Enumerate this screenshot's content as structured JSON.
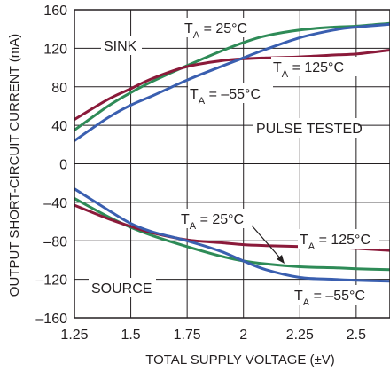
{
  "chart_data": {
    "type": "line",
    "xlabel": "TOTAL SUPPLY VOLTAGE (±V)",
    "ylabel": "OUTPUT SHORT-CIRCUIT CURRENT (mA)",
    "xlim": [
      1.25,
      2.65
    ],
    "ylim": [
      -160,
      160
    ],
    "xticks": [
      "1.25",
      "1.5",
      "1.75",
      "2",
      "2.25",
      "2.5"
    ],
    "yticks": [
      "160",
      "120",
      "80",
      "40",
      "0",
      "–40",
      "–80",
      "–120",
      "–160"
    ],
    "grid": true,
    "colors": {
      "t25": "#2e8b57",
      "t125": "#8b1a3a",
      "tm55": "#3a5fb0",
      "grid": "#231f20",
      "frame": "#231f20"
    },
    "series": [
      {
        "name": "T_A = 25°C",
        "group": "SINK",
        "color_key": "t25",
        "x": [
          1.25,
          1.4,
          1.5,
          1.6,
          1.75,
          1.9,
          2.0,
          2.1,
          2.25,
          2.4,
          2.5,
          2.65
        ],
        "y": [
          35,
          60,
          74,
          86,
          102,
          117,
          126,
          133,
          139,
          142,
          143,
          146
        ]
      },
      {
        "name": "T_A = 125°C",
        "group": "SINK",
        "color_key": "t125",
        "x": [
          1.25,
          1.4,
          1.5,
          1.6,
          1.75,
          1.9,
          2.0,
          2.1,
          2.25,
          2.4,
          2.5,
          2.65
        ],
        "y": [
          46,
          67,
          78,
          89,
          101,
          107,
          109,
          110,
          111,
          113,
          114,
          118
        ]
      },
      {
        "name": "T_A = –55°C",
        "group": "SINK",
        "color_key": "tm55",
        "x": [
          1.25,
          1.4,
          1.5,
          1.6,
          1.75,
          1.9,
          2.0,
          2.1,
          2.25,
          2.4,
          2.5,
          2.65
        ],
        "y": [
          24,
          48,
          61,
          71,
          87,
          101,
          110,
          119,
          131,
          139,
          142,
          145
        ]
      },
      {
        "name": "T_A = 25°C",
        "group": "SOURCE",
        "color_key": "t25",
        "x": [
          1.25,
          1.4,
          1.5,
          1.6,
          1.75,
          1.9,
          2.0,
          2.1,
          2.25,
          2.4,
          2.5,
          2.65
        ],
        "y": [
          -36,
          -55,
          -66,
          -75,
          -86,
          -96,
          -101,
          -104,
          -107,
          -108,
          -109,
          -110
        ]
      },
      {
        "name": "T_A = 125°C",
        "group": "SOURCE",
        "color_key": "t125",
        "x": [
          1.25,
          1.4,
          1.5,
          1.6,
          1.75,
          1.9,
          2.0,
          2.1,
          2.25,
          2.4,
          2.5,
          2.65
        ],
        "y": [
          -43,
          -57,
          -65,
          -72,
          -79,
          -82,
          -84,
          -85,
          -86,
          -87,
          -88,
          -90
        ]
      },
      {
        "name": "T_A = –55°C",
        "group": "SOURCE",
        "color_key": "tm55",
        "x": [
          1.25,
          1.4,
          1.5,
          1.6,
          1.75,
          1.9,
          2.0,
          2.1,
          2.25,
          2.4,
          2.5,
          2.65
        ],
        "y": [
          -26,
          -48,
          -62,
          -71,
          -80,
          -91,
          -101,
          -110,
          -118,
          -120,
          -121,
          -122
        ]
      }
    ],
    "annotations": {
      "sink": "SINK",
      "source": "SOURCE",
      "pulse": "PULSE TESTED",
      "ta_prefix": "T",
      "ta_sub": "A",
      "t25": " = 25°C",
      "t125": " = 125°C",
      "tm55": " = –55°C"
    }
  }
}
